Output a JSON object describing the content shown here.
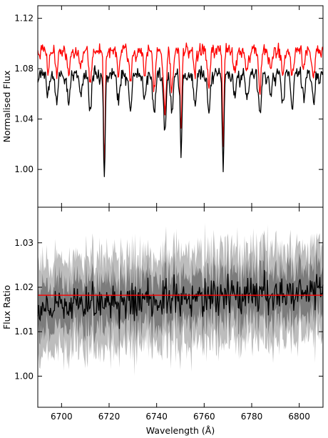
{
  "chart_data": [
    {
      "type": "line",
      "ylabel": "Normalised Flux",
      "xlim": [
        6690,
        6810
      ],
      "ylim": [
        0.97,
        1.13
      ],
      "yticks": [
        1.0,
        1.04,
        1.08,
        1.12
      ],
      "ytick_labels": [
        "1.00",
        "1.04",
        "1.08",
        "1.12"
      ],
      "xticks": [
        6700,
        6720,
        6740,
        6760,
        6780,
        6800
      ],
      "grid": false,
      "colors": {
        "red": "#ff0000",
        "black": "#000000"
      },
      "series": [
        {
          "color": "#ff0000",
          "baseline": 1.095,
          "features": [
            {
              "x": 6694.5,
              "depth": 0.012
            },
            {
              "x": 6698,
              "depth": 0.016
            },
            {
              "x": 6703,
              "depth": 0.02
            },
            {
              "x": 6708,
              "depth": 0.012
            },
            {
              "x": 6712,
              "depth": 0.025
            },
            {
              "x": 6718.0,
              "depth": 0.09
            },
            {
              "x": 6724,
              "depth": 0.018
            },
            {
              "x": 6729,
              "depth": 0.026
            },
            {
              "x": 6735,
              "depth": 0.016
            },
            {
              "x": 6739,
              "depth": 0.028
            },
            {
              "x": 6743.5,
              "depth": 0.05
            },
            {
              "x": 6746.5,
              "depth": 0.03
            },
            {
              "x": 6750.3,
              "depth": 0.062
            },
            {
              "x": 6756,
              "depth": 0.02
            },
            {
              "x": 6762,
              "depth": 0.03
            },
            {
              "x": 6768.0,
              "depth": 0.068
            },
            {
              "x": 6773,
              "depth": 0.016
            },
            {
              "x": 6778,
              "depth": 0.018
            },
            {
              "x": 6783.5,
              "depth": 0.03
            },
            {
              "x": 6788,
              "depth": 0.015
            },
            {
              "x": 6793,
              "depth": 0.018
            },
            {
              "x": 6797,
              "depth": 0.022
            },
            {
              "x": 6802,
              "depth": 0.015
            },
            {
              "x": 6806,
              "depth": 0.02
            }
          ]
        },
        {
          "color": "#000000",
          "baseline": 1.076,
          "features": [
            {
              "x": 6694.5,
              "depth": 0.014
            },
            {
              "x": 6698,
              "depth": 0.02
            },
            {
              "x": 6703,
              "depth": 0.024
            },
            {
              "x": 6708,
              "depth": 0.015
            },
            {
              "x": 6712,
              "depth": 0.028
            },
            {
              "x": 6718.0,
              "depth": 0.086
            },
            {
              "x": 6724,
              "depth": 0.02
            },
            {
              "x": 6729,
              "depth": 0.03
            },
            {
              "x": 6735,
              "depth": 0.019
            },
            {
              "x": 6739,
              "depth": 0.032
            },
            {
              "x": 6743.5,
              "depth": 0.045
            },
            {
              "x": 6746.5,
              "depth": 0.032
            },
            {
              "x": 6750.3,
              "depth": 0.065
            },
            {
              "x": 6756,
              "depth": 0.024
            },
            {
              "x": 6762,
              "depth": 0.034
            },
            {
              "x": 6768.0,
              "depth": 0.072
            },
            {
              "x": 6773,
              "depth": 0.02
            },
            {
              "x": 6778,
              "depth": 0.022
            },
            {
              "x": 6783.5,
              "depth": 0.032
            },
            {
              "x": 6788,
              "depth": 0.018
            },
            {
              "x": 6793,
              "depth": 0.022
            },
            {
              "x": 6797,
              "depth": 0.026
            },
            {
              "x": 6802,
              "depth": 0.018
            },
            {
              "x": 6806,
              "depth": 0.022
            }
          ]
        }
      ]
    },
    {
      "type": "area",
      "xlabel": "Wavelength (Å)",
      "ylabel": "Flux Ratio",
      "xlim": [
        6690,
        6810
      ],
      "ylim": [
        0.993,
        1.038
      ],
      "yticks": [
        1.0,
        1.01,
        1.02,
        1.03
      ],
      "ytick_labels": [
        "1.00",
        "1.01",
        "1.02",
        "1.03"
      ],
      "xticks": [
        6700,
        6720,
        6740,
        6760,
        6780,
        6800
      ],
      "xtick_labels": [
        "6700",
        "6720",
        "6740",
        "6760",
        "6780",
        "6800"
      ],
      "grid": false,
      "reference_line": {
        "y": 1.0182,
        "color": "#ff0000"
      },
      "mean": {
        "start": 1.0155,
        "end": 1.0195,
        "noise": 0.0022,
        "color": "#000000"
      },
      "bands": [
        {
          "name": "",
          "halfwidth": 0.0105,
          "color": "#bdbdbd"
        },
        {
          "name": "",
          "halfwidth": 0.0055,
          "color": "#7c7c7c"
        }
      ]
    }
  ]
}
